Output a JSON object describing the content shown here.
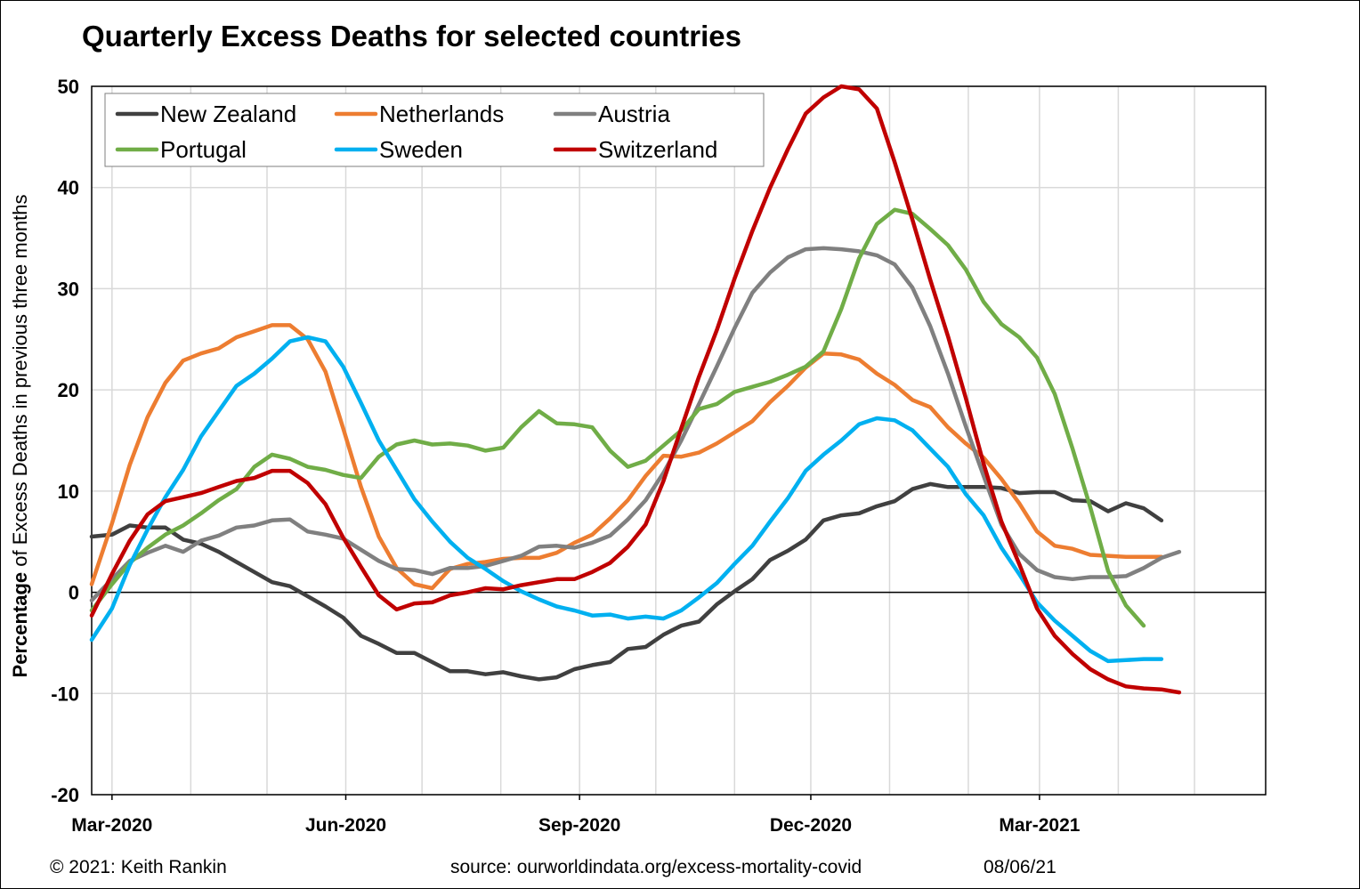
{
  "chart_data": {
    "type": "line",
    "title": "Quarterly Excess Deaths for selected countries",
    "ylabel_bold": "Percentage",
    "ylabel_rest": " of Excess Deaths in previous three months",
    "xlabel": "",
    "ylim": [
      -20,
      50
    ],
    "yticks": [
      -20,
      -10,
      0,
      10,
      20,
      30,
      40,
      50
    ],
    "xlim": [
      "2020-02-22",
      "2021-05-29"
    ],
    "xticks": [
      {
        "label": "Mar-2020",
        "date": "2020-03-01"
      },
      {
        "label": "Jun-2020",
        "date": "2020-06-01"
      },
      {
        "label": "Sep-2020",
        "date": "2020-09-01"
      },
      {
        "label": "Dec-2020",
        "date": "2020-12-01"
      },
      {
        "label": "Mar-2021",
        "date": "2021-03-01"
      }
    ],
    "grid": true,
    "legend_position": "top-left",
    "x": [
      "2020-02-22",
      "2020-03-01",
      "2020-03-08",
      "2020-03-15",
      "2020-03-22",
      "2020-03-29",
      "2020-04-05",
      "2020-04-12",
      "2020-04-19",
      "2020-04-26",
      "2020-05-03",
      "2020-05-10",
      "2020-05-17",
      "2020-05-24",
      "2020-05-31",
      "2020-06-07",
      "2020-06-14",
      "2020-06-21",
      "2020-06-28",
      "2020-07-05",
      "2020-07-12",
      "2020-07-19",
      "2020-07-26",
      "2020-08-02",
      "2020-08-09",
      "2020-08-16",
      "2020-08-23",
      "2020-08-30",
      "2020-09-06",
      "2020-09-13",
      "2020-09-20",
      "2020-09-27",
      "2020-10-04",
      "2020-10-11",
      "2020-10-18",
      "2020-10-25",
      "2020-11-01",
      "2020-11-08",
      "2020-11-15",
      "2020-11-22",
      "2020-11-29",
      "2020-12-06",
      "2020-12-13",
      "2020-12-20",
      "2020-12-27",
      "2021-01-03",
      "2021-01-10",
      "2021-01-17",
      "2021-01-24",
      "2021-01-31",
      "2021-02-07",
      "2021-02-14",
      "2021-02-21",
      "2021-02-28",
      "2021-03-07",
      "2021-03-14",
      "2021-03-21",
      "2021-03-28",
      "2021-04-04",
      "2021-04-11",
      "2021-04-18",
      "2021-04-25",
      "2021-05-02",
      "2021-05-09",
      "2021-05-16",
      "2021-05-23",
      "2021-05-30"
    ],
    "series": [
      {
        "name": "New Zealand",
        "color": "#404040",
        "values": [
          5.5,
          5.7,
          6.6,
          6.4,
          6.4,
          5.2,
          4.8,
          4.0,
          3.0,
          2.0,
          1.0,
          0.6,
          -0.4,
          -1.4,
          -2.5,
          -4.3,
          -5.1,
          -6.0,
          -6.0,
          -6.9,
          -7.8,
          -7.8,
          -8.1,
          -7.9,
          -8.3,
          -8.6,
          -8.4,
          -7.6,
          -7.2,
          -6.9,
          -5.6,
          -5.4,
          -4.2,
          -3.3,
          -2.9,
          -1.2,
          0.1,
          1.3,
          3.2,
          4.1,
          5.2,
          7.1,
          7.6,
          7.8,
          8.5,
          9.0,
          10.2,
          10.7,
          10.4,
          10.4,
          10.4,
          10.3,
          9.8,
          9.9,
          9.9,
          9.1,
          9.0,
          8.0,
          8.8,
          8.3,
          7.1,
          null,
          null,
          null,
          null,
          null,
          null
        ]
      },
      {
        "name": "Netherlands",
        "color": "#ED7D31",
        "values": [
          0.8,
          6.8,
          12.6,
          17.3,
          20.7,
          22.9,
          23.6,
          24.1,
          25.2,
          25.8,
          26.4,
          26.4,
          25.0,
          21.8,
          16.2,
          10.4,
          5.5,
          2.4,
          0.8,
          0.4,
          2.3,
          2.8,
          3.0,
          3.3,
          3.4,
          3.4,
          3.9,
          4.9,
          5.7,
          7.3,
          9.1,
          11.5,
          13.5,
          13.4,
          13.8,
          14.7,
          15.8,
          16.9,
          18.8,
          20.4,
          22.2,
          23.6,
          23.5,
          23.0,
          21.6,
          20.5,
          19.0,
          18.3,
          16.3,
          14.7,
          13.3,
          11.2,
          8.8,
          6.0,
          4.6,
          4.3,
          3.7,
          3.6,
          3.5,
          3.5,
          3.5,
          null,
          null,
          null,
          null,
          null,
          null
        ]
      },
      {
        "name": "Austria",
        "color": "#808080",
        "values": [
          -0.8,
          1.3,
          3.1,
          3.9,
          4.6,
          4.0,
          5.1,
          5.6,
          6.4,
          6.6,
          7.1,
          7.2,
          6.0,
          5.7,
          5.3,
          4.2,
          3.1,
          2.3,
          2.2,
          1.8,
          2.4,
          2.4,
          2.6,
          3.1,
          3.6,
          4.5,
          4.6,
          4.4,
          4.9,
          5.6,
          7.2,
          9.1,
          11.8,
          15.0,
          18.6,
          22.3,
          26.1,
          29.6,
          31.6,
          33.1,
          33.9,
          34.0,
          33.9,
          33.7,
          33.3,
          32.4,
          30.1,
          26.3,
          21.6,
          16.4,
          11.5,
          6.7,
          3.8,
          2.2,
          1.5,
          1.3,
          1.5,
          1.5,
          1.6,
          2.4,
          3.4,
          4.0,
          null,
          null,
          null,
          null,
          null
        ]
      },
      {
        "name": "Portugal",
        "color": "#70AD47",
        "values": [
          -1.8,
          0.8,
          2.9,
          4.4,
          5.7,
          6.6,
          7.8,
          9.1,
          10.2,
          12.4,
          13.6,
          13.2,
          12.4,
          12.1,
          11.6,
          11.3,
          13.4,
          14.6,
          15.0,
          14.6,
          14.7,
          14.5,
          14.0,
          14.3,
          16.3,
          17.9,
          16.7,
          16.6,
          16.3,
          14.0,
          12.4,
          13.0,
          14.5,
          16.0,
          18.1,
          18.6,
          19.8,
          20.3,
          20.8,
          21.5,
          22.3,
          23.8,
          28.0,
          33.0,
          36.4,
          37.8,
          37.4,
          35.9,
          34.3,
          31.9,
          28.7,
          26.5,
          25.2,
          23.2,
          19.6,
          14.2,
          8.4,
          2.1,
          -1.3,
          -3.3,
          null,
          null,
          null,
          null,
          null,
          null,
          null
        ]
      },
      {
        "name": "Sweden",
        "color": "#00B0F0",
        "values": [
          -4.7,
          -1.6,
          2.7,
          6.2,
          9.4,
          12.1,
          15.4,
          17.9,
          20.4,
          21.6,
          23.1,
          24.8,
          25.2,
          24.8,
          22.3,
          18.7,
          15.0,
          12.1,
          9.2,
          7.0,
          5.0,
          3.4,
          2.3,
          1.1,
          0.1,
          -0.7,
          -1.4,
          -1.8,
          -2.3,
          -2.2,
          -2.6,
          -2.4,
          -2.6,
          -1.8,
          -0.5,
          0.9,
          2.8,
          4.6,
          7.0,
          9.3,
          12.0,
          13.6,
          15.0,
          16.6,
          17.2,
          17.0,
          16.0,
          14.2,
          12.4,
          9.7,
          7.6,
          4.4,
          1.8,
          -1.0,
          -2.8,
          -4.3,
          -5.8,
          -6.8,
          -6.7,
          -6.6,
          -6.6,
          null,
          null,
          null,
          null,
          null,
          null
        ]
      },
      {
        "name": "Switzerland",
        "color": "#C00000",
        "values": [
          -2.3,
          1.8,
          5.1,
          7.7,
          9.0,
          9.4,
          9.8,
          10.4,
          11.0,
          11.3,
          12.0,
          12.0,
          10.8,
          8.7,
          5.4,
          2.5,
          -0.3,
          -1.7,
          -1.1,
          -1.0,
          -0.3,
          0.0,
          0.4,
          0.3,
          0.7,
          1.0,
          1.3,
          1.3,
          2.0,
          2.9,
          4.5,
          6.7,
          11.0,
          16.2,
          21.3,
          25.9,
          31.0,
          35.7,
          40.0,
          43.8,
          47.3,
          48.9,
          50.0,
          49.7,
          47.8,
          42.5,
          36.8,
          30.9,
          25.3,
          19.2,
          12.7,
          7.0,
          2.8,
          -1.6,
          -4.3,
          -6.1,
          -7.6,
          -8.6,
          -9.3,
          -9.5,
          -9.6,
          -9.9,
          null,
          null,
          null,
          null,
          null
        ]
      }
    ]
  },
  "footer": {
    "copyright": "© 2021: Keith Rankin",
    "source": "source: ourworldindata.org/excess-mortality-covid",
    "date": "08/06/21"
  }
}
